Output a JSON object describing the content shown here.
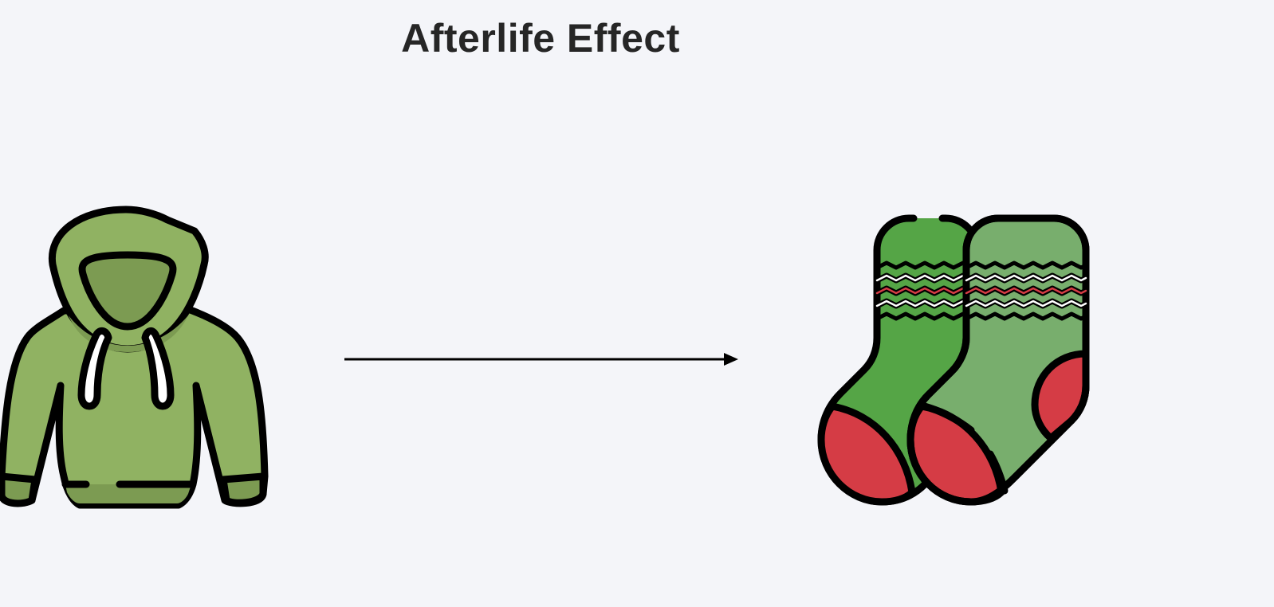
{
  "diagram": {
    "title": "Afterlife Effect",
    "nodes": [
      {
        "id": "source",
        "icon": "hoodie-icon",
        "label": ""
      },
      {
        "id": "target",
        "icon": "socks-icon",
        "label": ""
      }
    ],
    "edges": [
      {
        "from": "source",
        "to": "target",
        "style": "arrow",
        "label": ""
      }
    ]
  },
  "colors": {
    "background": "#f4f5f9",
    "outline": "#000000",
    "hoodie_green": "#90b262",
    "hoodie_shadow": "#7c9b52",
    "sock_green_dark": "#55a546",
    "sock_green_light": "#78ae6d",
    "sock_red": "#d53c45",
    "white": "#ffffff"
  }
}
